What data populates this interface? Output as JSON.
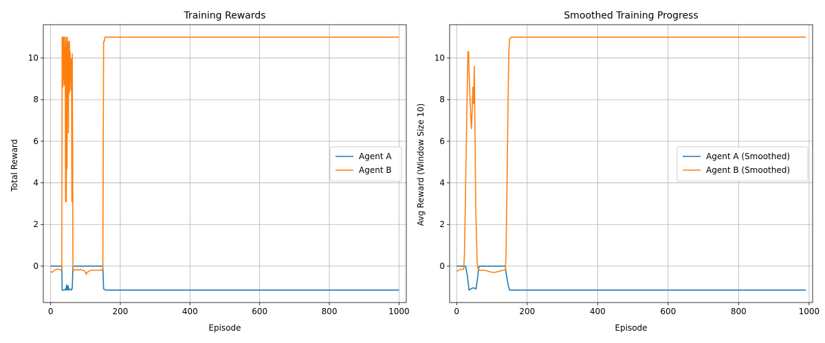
{
  "chart_data": [
    {
      "type": "line",
      "title": "Training Rewards",
      "xlabel": "Episode",
      "ylabel": "Total Reward",
      "xlim": [
        -21,
        1021
      ],
      "ylim": [
        -1.75,
        11.6
      ],
      "xticks": [
        0,
        200,
        400,
        600,
        800,
        1000
      ],
      "yticks": [
        0,
        2,
        4,
        6,
        8,
        10
      ],
      "grid": true,
      "legend": "center-right",
      "series": [
        {
          "name": "Agent A",
          "color": "#1f77b4",
          "x": [
            0,
            32,
            33,
            40,
            42,
            44,
            46,
            48,
            50,
            52,
            56,
            60,
            62,
            64,
            80,
            100,
            120,
            140,
            148,
            150,
            152,
            158,
            200,
            400,
            600,
            800,
            1000
          ],
          "y": [
            0,
            0,
            -1.15,
            -1.15,
            -1.1,
            -1.15,
            -0.9,
            -1.15,
            -0.95,
            -1.15,
            -1.1,
            -1.15,
            -1.05,
            0,
            0,
            0,
            0,
            0,
            0,
            0,
            -1.1,
            -1.15,
            -1.15,
            -1.15,
            -1.15,
            -1.15,
            -1.15
          ]
        },
        {
          "name": "Agent B",
          "color": "#ff7f0e",
          "x": [
            0,
            5,
            10,
            15,
            20,
            25,
            30,
            32,
            33,
            35,
            36,
            37,
            38,
            39,
            40,
            41,
            42,
            43,
            44,
            45,
            46,
            47,
            48,
            49,
            50,
            51,
            52,
            53,
            54,
            55,
            56,
            57,
            58,
            59,
            60,
            61,
            62,
            63,
            64,
            70,
            75,
            80,
            85,
            90,
            95,
            100,
            102,
            105,
            110,
            115,
            120,
            125,
            130,
            135,
            140,
            145,
            148,
            150,
            152,
            154,
            156,
            158,
            200,
            400,
            600,
            800,
            1000
          ],
          "y": [
            -0.25,
            -0.3,
            -0.2,
            -0.15,
            -0.15,
            -0.15,
            -0.2,
            -0.15,
            11.0,
            8.6,
            11.0,
            9.0,
            11.0,
            8.7,
            11.0,
            8.8,
            10.5,
            3.1,
            11.0,
            3.1,
            10.8,
            4.7,
            11.0,
            8.5,
            10.7,
            6.4,
            10.8,
            8.3,
            10.8,
            8.4,
            10.3,
            9.0,
            10.0,
            8.5,
            9.9,
            3.1,
            10.2,
            6.0,
            -0.15,
            -0.2,
            -0.15,
            -0.2,
            -0.15,
            -0.2,
            -0.2,
            -0.3,
            -0.4,
            -0.3,
            -0.25,
            -0.2,
            -0.2,
            -0.2,
            -0.2,
            -0.2,
            -0.2,
            -0.2,
            -0.15,
            -0.15,
            10.8,
            10.8,
            11.0,
            11.0,
            11.0,
            11.0,
            11.0,
            11.0,
            11.0
          ]
        }
      ]
    },
    {
      "type": "line",
      "title": "Smoothed Training Progress",
      "xlabel": "Episode",
      "ylabel": "Avg Reward (Window Size 10)",
      "xlim": [
        -20,
        1010
      ],
      "ylim": [
        -1.75,
        11.6
      ],
      "xticks": [
        0,
        200,
        400,
        600,
        800,
        1000
      ],
      "yticks": [
        0,
        2,
        4,
        6,
        8,
        10
      ],
      "grid": true,
      "legend": "center-right",
      "series": [
        {
          "name": "Agent A (Smoothed)",
          "color": "#1f77b4",
          "x": [
            0,
            20,
            25,
            30,
            35,
            40,
            45,
            50,
            55,
            60,
            62,
            65,
            80,
            100,
            120,
            138,
            140,
            143,
            146,
            150,
            155,
            200,
            400,
            600,
            800,
            991
          ],
          "y": [
            0,
            0,
            0,
            -0.4,
            -1.15,
            -1.1,
            -1.05,
            -1.05,
            -1.1,
            -0.5,
            -0.1,
            0,
            0,
            0,
            0,
            0,
            -0.3,
            -0.6,
            -0.9,
            -1.15,
            -1.15,
            -1.15,
            -1.15,
            -1.15,
            -1.15,
            -1.15
          ]
        },
        {
          "name": "Agent B (Smoothed)",
          "color": "#ff7f0e",
          "x": [
            0,
            5,
            10,
            15,
            20,
            22,
            24,
            26,
            28,
            30,
            32,
            34,
            35,
            36,
            38,
            40,
            42,
            44,
            46,
            48,
            50,
            52,
            54,
            56,
            58,
            60,
            62,
            64,
            70,
            80,
            90,
            100,
            110,
            120,
            130,
            138,
            140,
            142,
            144,
            146,
            148,
            150,
            155,
            200,
            400,
            600,
            800,
            991
          ],
          "y": [
            -0.25,
            -0.2,
            -0.15,
            -0.15,
            -0.15,
            0.5,
            2.5,
            4.6,
            6.5,
            8.5,
            10.3,
            10.3,
            9.4,
            9.0,
            8.0,
            7.2,
            6.6,
            7.5,
            8.6,
            7.8,
            9.6,
            6.5,
            3.0,
            1.5,
            0.2,
            -0.1,
            -0.15,
            -0.2,
            -0.2,
            -0.2,
            -0.25,
            -0.3,
            -0.3,
            -0.25,
            -0.2,
            -0.2,
            0.5,
            2.8,
            5.4,
            8.2,
            10.2,
            10.9,
            11.0,
            11.0,
            11.0,
            11.0,
            11.0,
            11.0
          ]
        }
      ]
    }
  ]
}
